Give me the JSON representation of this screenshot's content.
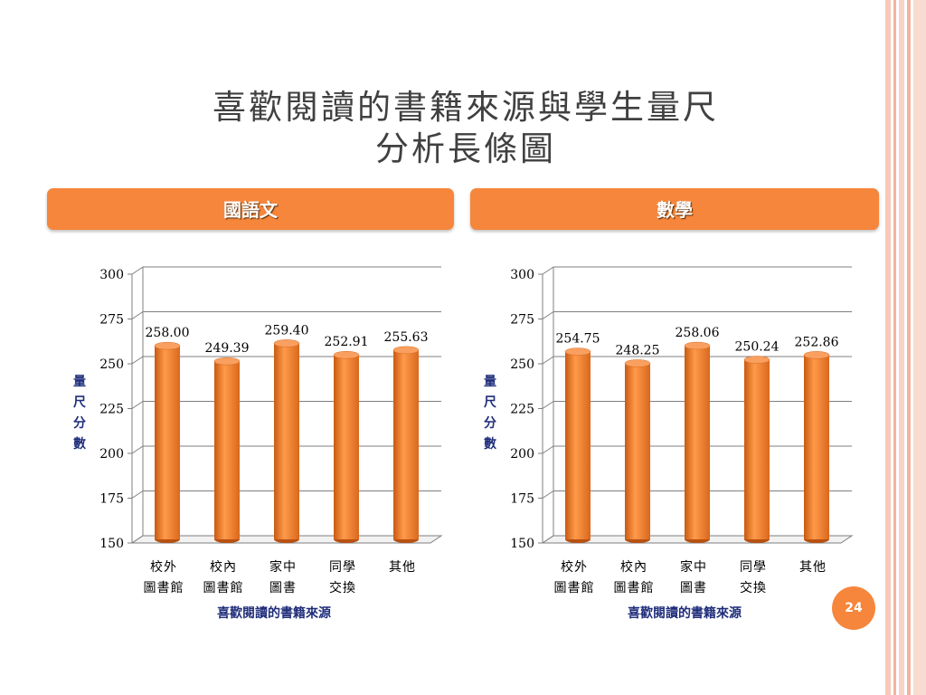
{
  "slide": {
    "title_line1": "喜歡閱讀的書籍來源與學生量尺",
    "title_line2": "分析長條圖",
    "page_number": "24",
    "accent_color": "#f6863c"
  },
  "charts": [
    {
      "banner": "國語文"
    },
    {
      "banner": "數學"
    }
  ],
  "chart_data": [
    {
      "type": "bar",
      "title": "國語文",
      "categories": [
        "校外\n圖書館",
        "校內\n圖書館",
        "家中\n圖書",
        "同學\n交換",
        "其他"
      ],
      "values": [
        258.0,
        249.39,
        259.4,
        252.91,
        255.63
      ],
      "value_labels": [
        "258.00",
        "249.39",
        "259.40",
        "252.91",
        "255.63"
      ],
      "xlabel": "喜歡閱讀的書籍來源",
      "ylabel": "量尺分數",
      "ylim": [
        150,
        300
      ],
      "yticks": [
        150,
        175,
        200,
        225,
        250,
        275,
        300
      ],
      "grid": true,
      "bar_color": "#f37b26"
    },
    {
      "type": "bar",
      "title": "數學",
      "categories": [
        "校外\n圖書館",
        "校內\n圖書館",
        "家中\n圖書",
        "同學\n交換",
        "其他"
      ],
      "values": [
        254.75,
        248.25,
        258.06,
        250.24,
        252.86
      ],
      "value_labels": [
        "254.75",
        "248.25",
        "258.06",
        "250.24",
        "252.86"
      ],
      "xlabel": "喜歡閱讀的書籍來源",
      "ylabel": "量尺分數",
      "ylim": [
        150,
        300
      ],
      "yticks": [
        150,
        175,
        200,
        225,
        250,
        275,
        300
      ],
      "grid": true,
      "bar_color": "#f37b26"
    }
  ]
}
